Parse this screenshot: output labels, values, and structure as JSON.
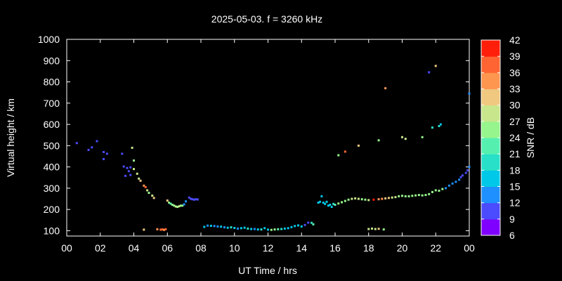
{
  "chart_data": {
    "type": "scatter",
    "title": "2025-05-03. f = 3260 kHz",
    "xlabel": "UT Time / hrs",
    "ylabel": "Virtual height / km",
    "xlim": [
      0,
      24
    ],
    "ylim": [
      75,
      1000
    ],
    "x_ticks": [
      "00",
      "02",
      "04",
      "06",
      "08",
      "10",
      "12",
      "14",
      "16",
      "18",
      "20",
      "22",
      "00"
    ],
    "y_ticks": [
      "100",
      "200",
      "300",
      "400",
      "500",
      "600",
      "700",
      "800",
      "900",
      "1000"
    ],
    "grid": false,
    "colorbar": {
      "label": "SNR / dB",
      "range": [
        6,
        42
      ],
      "ticks": [
        "6",
        "9",
        "12",
        "15",
        "18",
        "21",
        "24",
        "27",
        "30",
        "33",
        "36",
        "39",
        "42"
      ],
      "colors": [
        "#8000ff",
        "#4b4bff",
        "#1e90ff",
        "#00c8e8",
        "#28e0c8",
        "#55f0b0",
        "#96f58c",
        "#c8e68c",
        "#f0c880",
        "#ff9650",
        "#ff6432",
        "#ff1e0a"
      ]
    },
    "points": [
      {
        "x": 0.6,
        "y": 512,
        "snr": 9
      },
      {
        "x": 1.3,
        "y": 480,
        "snr": 9
      },
      {
        "x": 1.5,
        "y": 492,
        "snr": 9
      },
      {
        "x": 1.8,
        "y": 521,
        "snr": 9
      },
      {
        "x": 2.2,
        "y": 470,
        "snr": 9
      },
      {
        "x": 2.2,
        "y": 437,
        "snr": 9
      },
      {
        "x": 2.4,
        "y": 462,
        "snr": 9
      },
      {
        "x": 3.3,
        "y": 462,
        "snr": 9
      },
      {
        "x": 3.4,
        "y": 402,
        "snr": 9
      },
      {
        "x": 3.5,
        "y": 358,
        "snr": 9
      },
      {
        "x": 3.6,
        "y": 395,
        "snr": 9
      },
      {
        "x": 3.7,
        "y": 380,
        "snr": 9
      },
      {
        "x": 3.8,
        "y": 398,
        "snr": 11
      },
      {
        "x": 3.8,
        "y": 362,
        "snr": 9
      },
      {
        "x": 3.9,
        "y": 490,
        "snr": 27
      },
      {
        "x": 4.0,
        "y": 430,
        "snr": 24
      },
      {
        "x": 4.0,
        "y": 390,
        "snr": 27
      },
      {
        "x": 4.2,
        "y": 368,
        "snr": 27
      },
      {
        "x": 4.3,
        "y": 345,
        "snr": 27
      },
      {
        "x": 4.4,
        "y": 335,
        "snr": 30
      },
      {
        "x": 4.6,
        "y": 312,
        "snr": 33
      },
      {
        "x": 4.7,
        "y": 305,
        "snr": 36
      },
      {
        "x": 4.8,
        "y": 290,
        "snr": 27
      },
      {
        "x": 4.9,
        "y": 278,
        "snr": 24
      },
      {
        "x": 5.1,
        "y": 265,
        "snr": 27
      },
      {
        "x": 5.2,
        "y": 254,
        "snr": 30
      },
      {
        "x": 4.6,
        "y": 105,
        "snr": 30
      },
      {
        "x": 5.4,
        "y": 107,
        "snr": 33
      },
      {
        "x": 5.6,
        "y": 105,
        "snr": 36
      },
      {
        "x": 5.7,
        "y": 106,
        "snr": 36
      },
      {
        "x": 5.8,
        "y": 104,
        "snr": 33
      },
      {
        "x": 5.9,
        "y": 107,
        "snr": 38
      },
      {
        "x": 6.0,
        "y": 242,
        "snr": 30
      },
      {
        "x": 6.1,
        "y": 232,
        "snr": 24
      },
      {
        "x": 6.2,
        "y": 227,
        "snr": 21
      },
      {
        "x": 6.3,
        "y": 222,
        "snr": 24
      },
      {
        "x": 6.4,
        "y": 218,
        "snr": 24
      },
      {
        "x": 6.5,
        "y": 214,
        "snr": 27
      },
      {
        "x": 6.6,
        "y": 212,
        "snr": 24
      },
      {
        "x": 6.7,
        "y": 215,
        "snr": 27
      },
      {
        "x": 6.8,
        "y": 218,
        "snr": 24
      },
      {
        "x": 6.9,
        "y": 218,
        "snr": 24
      },
      {
        "x": 7.0,
        "y": 224,
        "snr": 12
      },
      {
        "x": 7.1,
        "y": 238,
        "snr": 12
      },
      {
        "x": 7.3,
        "y": 256,
        "snr": 11
      },
      {
        "x": 7.4,
        "y": 250,
        "snr": 11
      },
      {
        "x": 7.5,
        "y": 248,
        "snr": 9
      },
      {
        "x": 7.6,
        "y": 246,
        "snr": 11
      },
      {
        "x": 7.7,
        "y": 248,
        "snr": 9
      },
      {
        "x": 7.8,
        "y": 247,
        "snr": 11
      },
      {
        "x": 8.2,
        "y": 118,
        "snr": 15
      },
      {
        "x": 8.4,
        "y": 124,
        "snr": 12
      },
      {
        "x": 8.6,
        "y": 123,
        "snr": 15
      },
      {
        "x": 8.8,
        "y": 122,
        "snr": 12
      },
      {
        "x": 9.0,
        "y": 120,
        "snr": 12
      },
      {
        "x": 9.2,
        "y": 119,
        "snr": 15
      },
      {
        "x": 9.4,
        "y": 116,
        "snr": 12
      },
      {
        "x": 9.6,
        "y": 114,
        "snr": 15
      },
      {
        "x": 9.8,
        "y": 116,
        "snr": 18
      },
      {
        "x": 10.0,
        "y": 113,
        "snr": 15
      },
      {
        "x": 10.2,
        "y": 110,
        "snr": 12
      },
      {
        "x": 10.4,
        "y": 112,
        "snr": 15
      },
      {
        "x": 10.6,
        "y": 114,
        "snr": 15
      },
      {
        "x": 10.8,
        "y": 110,
        "snr": 18
      },
      {
        "x": 11.0,
        "y": 108,
        "snr": 15
      },
      {
        "x": 11.2,
        "y": 108,
        "snr": 12
      },
      {
        "x": 11.4,
        "y": 106,
        "snr": 15
      },
      {
        "x": 11.6,
        "y": 106,
        "snr": 18
      },
      {
        "x": 11.8,
        "y": 112,
        "snr": 15
      },
      {
        "x": 12.0,
        "y": 105,
        "snr": 15
      },
      {
        "x": 12.2,
        "y": 104,
        "snr": 24
      },
      {
        "x": 12.4,
        "y": 106,
        "snr": 24
      },
      {
        "x": 12.6,
        "y": 107,
        "snr": 21
      },
      {
        "x": 12.8,
        "y": 108,
        "snr": 18
      },
      {
        "x": 13.0,
        "y": 110,
        "snr": 15
      },
      {
        "x": 13.2,
        "y": 112,
        "snr": 15
      },
      {
        "x": 13.4,
        "y": 117,
        "snr": 15
      },
      {
        "x": 13.6,
        "y": 122,
        "snr": 15
      },
      {
        "x": 13.8,
        "y": 125,
        "snr": 15
      },
      {
        "x": 14.0,
        "y": 120,
        "snr": 15
      },
      {
        "x": 14.2,
        "y": 127,
        "snr": 11
      },
      {
        "x": 14.4,
        "y": 138,
        "snr": 11
      },
      {
        "x": 14.6,
        "y": 137,
        "snr": 18
      },
      {
        "x": 14.7,
        "y": 130,
        "snr": 21
      },
      {
        "x": 15.0,
        "y": 232,
        "snr": 15
      },
      {
        "x": 15.1,
        "y": 236,
        "snr": 15
      },
      {
        "x": 15.2,
        "y": 262,
        "snr": 15
      },
      {
        "x": 15.3,
        "y": 232,
        "snr": 15
      },
      {
        "x": 15.4,
        "y": 226,
        "snr": 15
      },
      {
        "x": 15.5,
        "y": 236,
        "snr": 15
      },
      {
        "x": 15.6,
        "y": 218,
        "snr": 15
      },
      {
        "x": 15.7,
        "y": 222,
        "snr": 15
      },
      {
        "x": 15.8,
        "y": 212,
        "snr": 15
      },
      {
        "x": 15.9,
        "y": 226,
        "snr": 18
      },
      {
        "x": 16.0,
        "y": 222,
        "snr": 21
      },
      {
        "x": 16.2,
        "y": 228,
        "snr": 24
      },
      {
        "x": 16.4,
        "y": 234,
        "snr": 24
      },
      {
        "x": 16.6,
        "y": 240,
        "snr": 24
      },
      {
        "x": 16.8,
        "y": 246,
        "snr": 24
      },
      {
        "x": 17.0,
        "y": 250,
        "snr": 27
      },
      {
        "x": 17.2,
        "y": 252,
        "snr": 27
      },
      {
        "x": 17.4,
        "y": 250,
        "snr": 27
      },
      {
        "x": 17.6,
        "y": 248,
        "snr": 24
      },
      {
        "x": 17.8,
        "y": 246,
        "snr": 24
      },
      {
        "x": 18.0,
        "y": 244,
        "snr": 27
      },
      {
        "x": 18.3,
        "y": 246,
        "snr": 39
      },
      {
        "x": 18.6,
        "y": 248,
        "snr": 33
      },
      {
        "x": 18.8,
        "y": 250,
        "snr": 33
      },
      {
        "x": 19.0,
        "y": 252,
        "snr": 30
      },
      {
        "x": 19.2,
        "y": 254,
        "snr": 30
      },
      {
        "x": 19.4,
        "y": 256,
        "snr": 27
      },
      {
        "x": 19.6,
        "y": 258,
        "snr": 27
      },
      {
        "x": 19.8,
        "y": 262,
        "snr": 24
      },
      {
        "x": 20.0,
        "y": 264,
        "snr": 24
      },
      {
        "x": 20.2,
        "y": 262,
        "snr": 24
      },
      {
        "x": 20.4,
        "y": 262,
        "snr": 24
      },
      {
        "x": 20.6,
        "y": 264,
        "snr": 24
      },
      {
        "x": 20.8,
        "y": 266,
        "snr": 24
      },
      {
        "x": 21.0,
        "y": 268,
        "snr": 24
      },
      {
        "x": 21.2,
        "y": 266,
        "snr": 24
      },
      {
        "x": 21.4,
        "y": 268,
        "snr": 24
      },
      {
        "x": 21.6,
        "y": 272,
        "snr": 24
      },
      {
        "x": 21.8,
        "y": 282,
        "snr": 24
      },
      {
        "x": 22.0,
        "y": 290,
        "snr": 24
      },
      {
        "x": 22.2,
        "y": 288,
        "snr": 24
      },
      {
        "x": 22.4,
        "y": 296,
        "snr": 24
      },
      {
        "x": 22.6,
        "y": 300,
        "snr": 12
      },
      {
        "x": 22.8,
        "y": 312,
        "snr": 12
      },
      {
        "x": 23.0,
        "y": 322,
        "snr": 12
      },
      {
        "x": 23.2,
        "y": 330,
        "snr": 12
      },
      {
        "x": 23.4,
        "y": 340,
        "snr": 12
      },
      {
        "x": 23.5,
        "y": 352,
        "snr": 9
      },
      {
        "x": 23.6,
        "y": 360,
        "snr": 9
      },
      {
        "x": 23.8,
        "y": 372,
        "snr": 9
      },
      {
        "x": 23.9,
        "y": 384,
        "snr": 9
      },
      {
        "x": 24.0,
        "y": 400,
        "snr": 12
      },
      {
        "x": 18.0,
        "y": 108,
        "snr": 27
      },
      {
        "x": 18.2,
        "y": 110,
        "snr": 27
      },
      {
        "x": 18.4,
        "y": 108,
        "snr": 27
      },
      {
        "x": 18.6,
        "y": 109,
        "snr": 30
      },
      {
        "x": 18.9,
        "y": 106,
        "snr": 24
      },
      {
        "x": 16.2,
        "y": 455,
        "snr": 24
      },
      {
        "x": 16.6,
        "y": 472,
        "snr": 36
      },
      {
        "x": 17.4,
        "y": 500,
        "snr": 30
      },
      {
        "x": 18.6,
        "y": 525,
        "snr": 24
      },
      {
        "x": 19.0,
        "y": 770,
        "snr": 33
      },
      {
        "x": 20.0,
        "y": 540,
        "snr": 27
      },
      {
        "x": 20.2,
        "y": 532,
        "snr": 27
      },
      {
        "x": 21.2,
        "y": 540,
        "snr": 24
      },
      {
        "x": 21.6,
        "y": 845,
        "snr": 9
      },
      {
        "x": 21.8,
        "y": 585,
        "snr": 18
      },
      {
        "x": 22.0,
        "y": 875,
        "snr": 30
      },
      {
        "x": 22.2,
        "y": 592,
        "snr": 18
      },
      {
        "x": 22.3,
        "y": 600,
        "snr": 15
      },
      {
        "x": 24.0,
        "y": 745,
        "snr": 12
      }
    ]
  }
}
